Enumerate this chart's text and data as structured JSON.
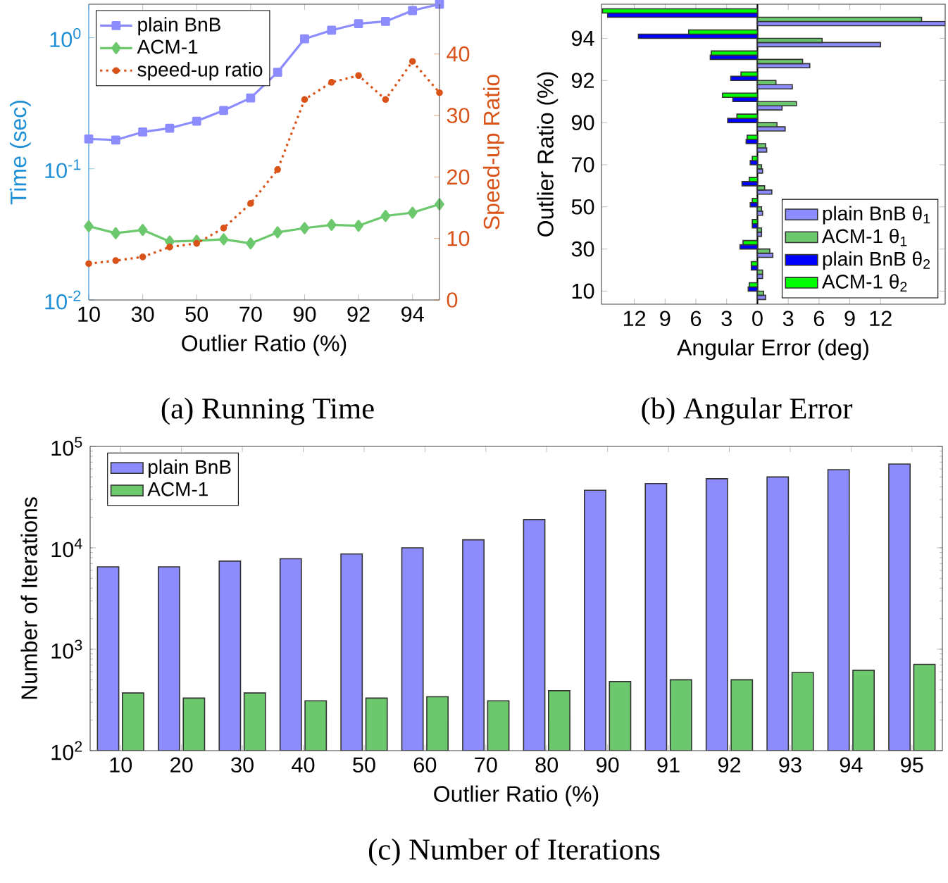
{
  "chart_data": [
    {
      "type": "line",
      "title": "(a) Running Time",
      "xlabel": "Outlier Ratio (%)",
      "ylabel": "Time (sec)",
      "y2label": "Speed-up Ratio",
      "categories": [
        "10",
        null,
        "30",
        null,
        "50",
        null,
        "70",
        null,
        "90",
        null,
        "92",
        null,
        "94",
        null
      ],
      "log": "y",
      "ylim": [
        0.01,
        1.8
      ],
      "yticks": [
        {
          "value": 0.01,
          "label": "10$^{-2}$"
        },
        {
          "value": 0.1,
          "label": "10$^{-1}$"
        },
        {
          "value": 1,
          "label": "10$^{0}$"
        }
      ],
      "y2lim": [
        0,
        48.1
      ],
      "y2ticks": [
        0,
        10,
        20,
        30,
        40
      ],
      "legend": "top left",
      "series": [
        {
          "name": "plain BnB",
          "color": "#8c8cff",
          "marker": "square",
          "values": [
            0.169,
            0.166,
            0.191,
            0.204,
            0.231,
            0.279,
            0.347,
            0.545,
            0.98,
            1.14,
            1.28,
            1.33,
            1.61,
            1.8
          ]
        },
        {
          "name": "ACM-1",
          "color": "#6cc86c",
          "marker": "diamond",
          "values": [
            0.0365,
            0.0323,
            0.0342,
            0.0279,
            0.0283,
            0.029,
            0.027,
            0.0328,
            0.0353,
            0.0374,
            0.0368,
            0.0437,
            0.0463,
            0.0537
          ]
        },
        {
          "name": "speed-up ratio",
          "color": "#d95319",
          "marker": "circle",
          "line_style": "dotted",
          "axis": "y2",
          "values": [
            5.9,
            6.4,
            7.0,
            8.6,
            9.2,
            11.7,
            15.7,
            21.2,
            32.6,
            35.4,
            36.5,
            32.6,
            38.8,
            33.7
          ]
        }
      ]
    },
    {
      "type": "bar",
      "orientation": "horizontal",
      "title": "(b) Angular Error",
      "xlabel": "Angular Error (deg)",
      "ylabel": "Outlier Ratio (%)",
      "categories": [
        null,
        "94",
        null,
        "92",
        null,
        "90",
        null,
        "70",
        null,
        "50",
        null,
        "30",
        null,
        "10"
      ],
      "xlim": [
        -15.2,
        18.3
      ],
      "xticks": [
        {
          "value": -12,
          "label": "12"
        },
        {
          "value": -9,
          "label": "9"
        },
        {
          "value": -6,
          "label": "6"
        },
        {
          "value": -3,
          "label": "3"
        },
        0,
        3,
        6,
        9,
        12
      ],
      "legend": "bottom right",
      "series": [
        {
          "name": "plain BnB θ$_{1}$",
          "color": "#8c8cff",
          "values": [
            18.3,
            12.0,
            5.1,
            3.4,
            2.4,
            2.7,
            0.9,
            0.5,
            1.4,
            0.5,
            0.4,
            1.5,
            0.5,
            0.8
          ]
        },
        {
          "name": "ACM-1 θ$_{1}$",
          "color": "#6cc86c",
          "values": [
            16.0,
            6.3,
            4.4,
            1.8,
            3.8,
            1.9,
            0.8,
            0.4,
            0.7,
            0.4,
            0.4,
            1.2,
            0.5,
            0.6
          ]
        },
        {
          "name": "plain BnB θ$_{2}$",
          "color": "#0000ff",
          "values": [
            -14.6,
            -11.6,
            -4.6,
            -2.6,
            -2.4,
            -2.9,
            -1.1,
            -0.7,
            -1.5,
            -0.7,
            -0.5,
            -1.7,
            -0.6,
            -0.9
          ]
        },
        {
          "name": "ACM-1 θ$_{2}$",
          "color": "#00ff00",
          "values": [
            -15.1,
            -6.7,
            -4.5,
            -1.6,
            -3.4,
            -2.0,
            -1.0,
            -0.5,
            -0.8,
            -0.5,
            -0.5,
            -1.4,
            -0.6,
            -0.8
          ]
        }
      ]
    },
    {
      "type": "bar",
      "title": "(c) Number of Iterations",
      "xlabel": "Outlier Ratio (%)",
      "ylabel": "Number of Iterations",
      "categories": [
        "10",
        "20",
        "30",
        "40",
        "50",
        "60",
        "70",
        "80",
        "90",
        "91",
        "92",
        "93",
        "94",
        "95"
      ],
      "log": "y",
      "ylim": [
        100,
        100000
      ],
      "yticks": [
        {
          "value": 100,
          "label": "10$^{2}$"
        },
        {
          "value": 1000,
          "label": "10$^{3}$"
        },
        {
          "value": 10000,
          "label": "10$^{4}$"
        },
        {
          "value": 100000,
          "label": "10$^{5}$"
        }
      ],
      "legend": "top left",
      "series": [
        {
          "name": "plain BnB",
          "color": "#8c8cff",
          "values": [
            6500,
            6500,
            7400,
            7800,
            8700,
            10000,
            12000,
            19000,
            37000,
            43000,
            48000,
            50000,
            59000,
            67000
          ]
        },
        {
          "name": "ACM-1",
          "color": "#6cc86c",
          "values": [
            370,
            330,
            370,
            310,
            330,
            340,
            310,
            390,
            480,
            500,
            500,
            590,
            620,
            710
          ]
        }
      ]
    }
  ]
}
